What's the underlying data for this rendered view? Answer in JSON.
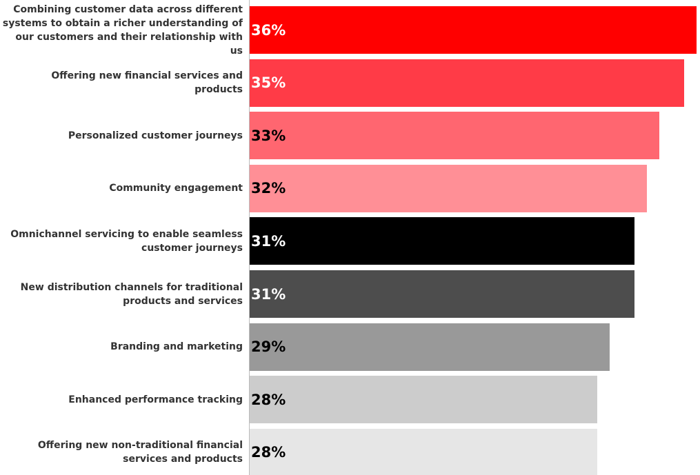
{
  "chart_data": {
    "type": "bar",
    "orientation": "horizontal",
    "categories": [
      "Combining customer data across different\nsystems to obtain a richer understanding of\nour customers and their relationship with us",
      "Offering new financial services and products",
      "Personalized customer journeys",
      "Community engagement",
      "Omnichannel servicing to enable seamless\ncustomer journeys",
      "New distribution channels for traditional\nproducts and services",
      "Branding and marketing",
      "Enhanced performance tracking",
      "Offering new non-traditional financial\nservices and products"
    ],
    "values": [
      36,
      35,
      33,
      32,
      31,
      31,
      29,
      28,
      28
    ],
    "value_labels": [
      "36%",
      "35%",
      "33%",
      "32%",
      "31%",
      "31%",
      "29%",
      "28%",
      "28%"
    ],
    "colors": [
      "#ff0000",
      "#ff3b47",
      "#ff6670",
      "#ff8f96",
      "#000000",
      "#4d4d4d",
      "#999999",
      "#cccccc",
      "#e6e6e6"
    ]
  }
}
